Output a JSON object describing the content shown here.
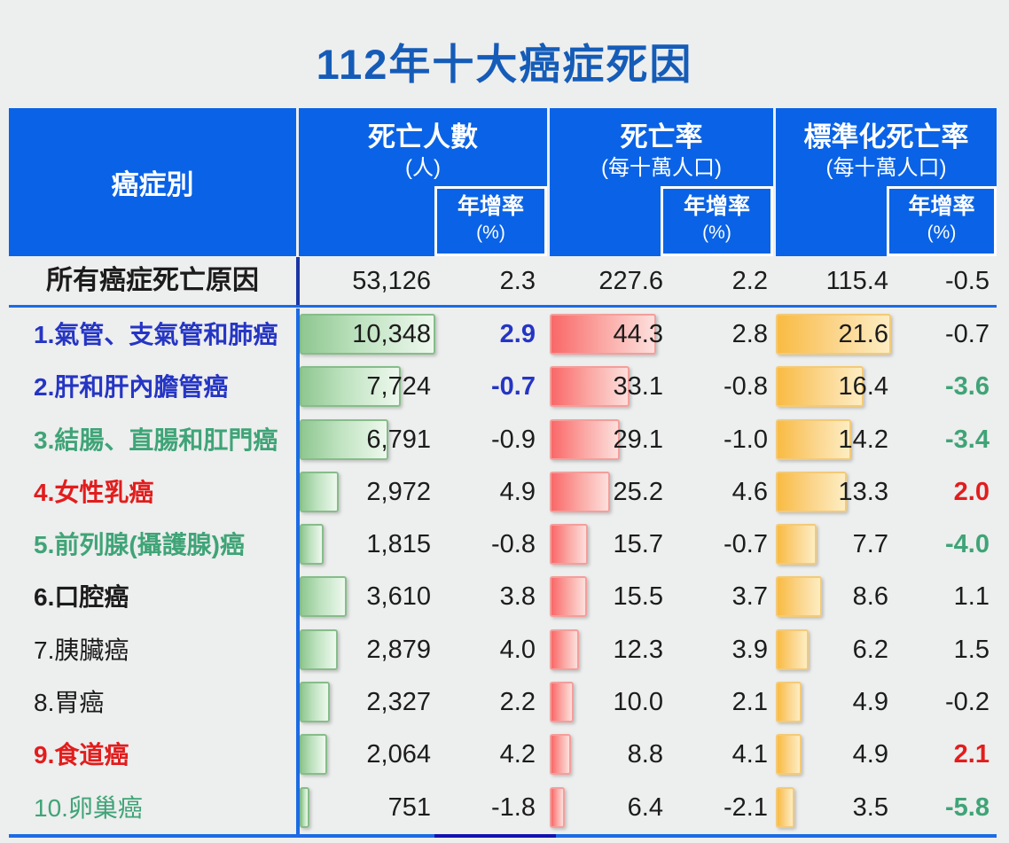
{
  "title": "112年十大癌症死因",
  "colors": {
    "title": "#155cb8",
    "header_bg": "#0a63e6",
    "header_text": "#ffffff",
    "line_blue": "#1b6be4",
    "line_navy": "#1213b0",
    "summary_divider": "#1b35a6",
    "label_blue": "#2535c4",
    "label_green": "#3fa477",
    "label_red": "#e21d1d",
    "text_black": "#1c1c1c",
    "bar_green": "#8fc791",
    "bar_red": "#f96868",
    "bar_orange": "#f9bb43"
  },
  "table": {
    "header": {
      "cancer_type": "癌症別",
      "deaths": {
        "title": "死亡人數",
        "unit": "(人)",
        "growth": "年增率",
        "growth_unit": "(%)"
      },
      "rate": {
        "title": "死亡率",
        "unit": "(每十萬人口)",
        "growth": "年增率",
        "growth_unit": "(%)"
      },
      "std": {
        "title": "標準化死亡率",
        "unit": "(每十萬人口)",
        "growth": "年增率",
        "growth_unit": "(%)"
      }
    },
    "summary": {
      "label": "所有癌症死亡原因",
      "deaths": "53,126",
      "deaths_growth": "2.3",
      "rate": "227.6",
      "rate_growth": "2.2",
      "std_rate": "115.4",
      "std_growth": "-0.5"
    },
    "rows": [
      {
        "label": "1.氣管、支氣管和肺癌",
        "label_color": "blue",
        "label_bold": true,
        "deaths": "10,348",
        "deaths_growth": "2.9",
        "deaths_growth_color": "blue",
        "rate": "44.3",
        "rate_growth": "2.8",
        "rate_growth_color": "black",
        "std_rate": "21.6",
        "std_growth": "-0.7",
        "std_growth_color": "black"
      },
      {
        "label": "2.肝和肝內膽管癌",
        "label_color": "blue",
        "label_bold": true,
        "deaths": "7,724",
        "deaths_growth": "-0.7",
        "deaths_growth_color": "blue",
        "rate": "33.1",
        "rate_growth": "-0.8",
        "rate_growth_color": "black",
        "std_rate": "16.4",
        "std_growth": "-3.6",
        "std_growth_color": "green"
      },
      {
        "label": "3.結腸、直腸和肛門癌",
        "label_color": "green",
        "label_bold": true,
        "deaths": "6,791",
        "deaths_growth": "-0.9",
        "deaths_growth_color": "black",
        "rate": "29.1",
        "rate_growth": "-1.0",
        "rate_growth_color": "black",
        "std_rate": "14.2",
        "std_growth": "-3.4",
        "std_growth_color": "green"
      },
      {
        "label": "4.女性乳癌",
        "label_color": "red",
        "label_bold": true,
        "deaths": "2,972",
        "deaths_growth": "4.9",
        "deaths_growth_color": "black",
        "rate": "25.2",
        "rate_growth": "4.6",
        "rate_growth_color": "black",
        "std_rate": "13.3",
        "std_growth": "2.0",
        "std_growth_color": "red"
      },
      {
        "label": "5.前列腺(攝護腺)癌",
        "label_color": "green",
        "label_bold": true,
        "deaths": "1,815",
        "deaths_growth": "-0.8",
        "deaths_growth_color": "black",
        "rate": "15.7",
        "rate_growth": "-0.7",
        "rate_growth_color": "black",
        "std_rate": "7.7",
        "std_growth": "-4.0",
        "std_growth_color": "green"
      },
      {
        "label": "6.口腔癌",
        "label_color": "black",
        "label_bold": true,
        "deaths": "3,610",
        "deaths_growth": "3.8",
        "deaths_growth_color": "black",
        "rate": "15.5",
        "rate_growth": "3.7",
        "rate_growth_color": "black",
        "std_rate": "8.6",
        "std_growth": "1.1",
        "std_growth_color": "black"
      },
      {
        "label": "7.胰臟癌",
        "label_color": "black",
        "label_bold": false,
        "deaths": "2,879",
        "deaths_growth": "4.0",
        "deaths_growth_color": "black",
        "rate": "12.3",
        "rate_growth": "3.9",
        "rate_growth_color": "black",
        "std_rate": "6.2",
        "std_growth": "1.5",
        "std_growth_color": "black"
      },
      {
        "label": "8.胃癌",
        "label_color": "black",
        "label_bold": false,
        "deaths": "2,327",
        "deaths_growth": "2.2",
        "deaths_growth_color": "black",
        "rate": "10.0",
        "rate_growth": "2.1",
        "rate_growth_color": "black",
        "std_rate": "4.9",
        "std_growth": "-0.2",
        "std_growth_color": "black"
      },
      {
        "label": "9.食道癌",
        "label_color": "red",
        "label_bold": true,
        "deaths": "2,064",
        "deaths_growth": "4.2",
        "deaths_growth_color": "black",
        "rate": "8.8",
        "rate_growth": "4.1",
        "rate_growth_color": "black",
        "std_rate": "4.9",
        "std_growth": "2.1",
        "std_growth_color": "red"
      },
      {
        "label": "10.卵巢癌",
        "label_color": "green",
        "label_bold": false,
        "deaths": "751",
        "deaths_growth": "-1.8",
        "deaths_growth_color": "black",
        "rate": "6.4",
        "rate_growth": "-2.1",
        "rate_growth_color": "black",
        "std_rate": "3.5",
        "std_growth": "-5.8",
        "std_growth_color": "green"
      }
    ]
  },
  "chart_data": {
    "type": "table",
    "title": "112年十大癌症死因",
    "categories": [
      "所有癌症死亡原因",
      "1.氣管、支氣管和肺癌",
      "2.肝和肝內膽管癌",
      "3.結腸、直腸和肛門癌",
      "4.女性乳癌",
      "5.前列腺(攝護腺)癌",
      "6.口腔癌",
      "7.胰臟癌",
      "8.胃癌",
      "9.食道癌",
      "10.卵巢癌"
    ],
    "series": [
      {
        "name": "死亡人數(人)",
        "values": [
          53126,
          10348,
          7724,
          6791,
          2972,
          1815,
          3610,
          2879,
          2327,
          2064,
          751
        ],
        "bar_color": "green"
      },
      {
        "name": "死亡人數年增率(%)",
        "values": [
          2.3,
          2.9,
          -0.7,
          -0.9,
          4.9,
          -0.8,
          3.8,
          4.0,
          2.2,
          4.2,
          -1.8
        ]
      },
      {
        "name": "死亡率(每十萬人口)",
        "values": [
          227.6,
          44.3,
          33.1,
          29.1,
          25.2,
          15.7,
          15.5,
          12.3,
          10.0,
          8.8,
          6.4
        ],
        "bar_color": "red"
      },
      {
        "name": "死亡率年增率(%)",
        "values": [
          2.2,
          2.8,
          -0.8,
          -1.0,
          4.6,
          -0.7,
          3.7,
          3.9,
          2.1,
          4.1,
          -2.1
        ]
      },
      {
        "name": "標準化死亡率(每十萬人口)",
        "values": [
          115.4,
          21.6,
          16.4,
          14.2,
          13.3,
          7.7,
          8.6,
          6.2,
          4.9,
          4.9,
          3.5
        ],
        "bar_color": "orange"
      },
      {
        "name": "標準化死亡率年增率(%)",
        "values": [
          -0.5,
          -0.7,
          -3.6,
          -3.4,
          2.0,
          -4.0,
          1.1,
          1.5,
          -0.2,
          2.1,
          -5.8
        ]
      }
    ],
    "notes": "bars drawn only for the 10 ranked rows; bar length proportional to value within each measure column"
  }
}
